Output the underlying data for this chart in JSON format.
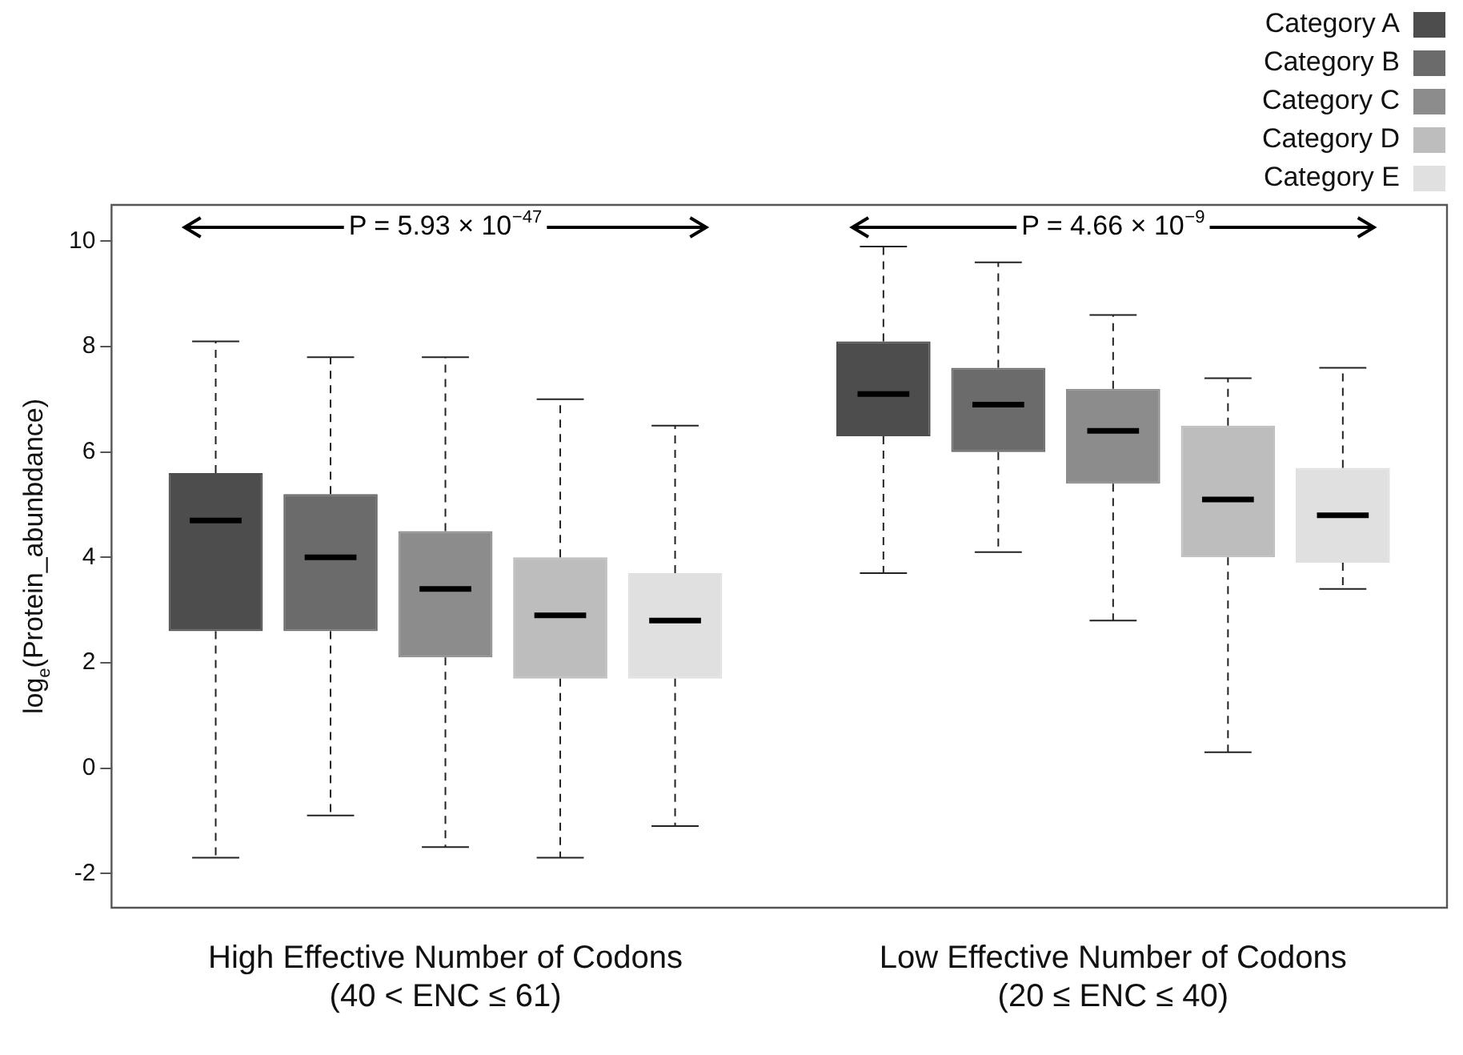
{
  "chart_data": {
    "type": "box",
    "ylabel": "log$_{e}$(Protein_abunbdance)",
    "categories": [
      "High Effective Number of Codons\n(40 < ENC ≤ 61)",
      "Low Effective Number of Codons\n(20 ≤ ENC ≤ 40)"
    ],
    "series": [
      {
        "name": "Category A",
        "color": "#4d4d4d",
        "boxes": [
          {
            "low": -1.7,
            "q1": 2.6,
            "median": 4.7,
            "q3": 5.6,
            "high": 8.1
          },
          {
            "low": 3.7,
            "q1": 6.3,
            "median": 7.1,
            "q3": 8.1,
            "high": 9.9
          }
        ]
      },
      {
        "name": "Category B",
        "color": "#6b6b6b",
        "boxes": [
          {
            "low": -0.9,
            "q1": 2.6,
            "median": 4.0,
            "q3": 5.2,
            "high": 7.8
          },
          {
            "low": 4.1,
            "q1": 6.0,
            "median": 6.9,
            "q3": 7.6,
            "high": 9.6
          }
        ]
      },
      {
        "name": "Category C",
        "color": "#8c8c8c",
        "boxes": [
          {
            "low": -1.5,
            "q1": 2.1,
            "median": 3.4,
            "q3": 4.5,
            "high": 7.8
          },
          {
            "low": 2.8,
            "q1": 5.4,
            "median": 6.4,
            "q3": 7.2,
            "high": 8.6
          }
        ]
      },
      {
        "name": "Category D",
        "color": "#bdbdbd",
        "boxes": [
          {
            "low": -1.7,
            "q1": 1.7,
            "median": 2.9,
            "q3": 4.0,
            "high": 7.0
          },
          {
            "low": 0.3,
            "q1": 4.0,
            "median": 5.1,
            "q3": 6.5,
            "high": 7.4
          }
        ]
      },
      {
        "name": "Category E",
        "color": "#e0e0e0",
        "boxes": [
          {
            "low": -1.1,
            "q1": 1.7,
            "median": 2.8,
            "q3": 3.7,
            "high": 6.5
          },
          {
            "low": 3.4,
            "q1": 3.9,
            "median": 4.8,
            "q3": 5.7,
            "high": 7.6
          }
        ]
      }
    ],
    "ylim": [
      -2.65,
      10.69
    ],
    "yticks": [
      -2,
      0,
      2,
      4,
      6,
      8,
      10
    ],
    "grid": false,
    "legend": "top right",
    "annotations": [
      "P = 5.93 × 10$^{−47}$",
      "P = 4.66 × 10$^{−9}$"
    ]
  }
}
